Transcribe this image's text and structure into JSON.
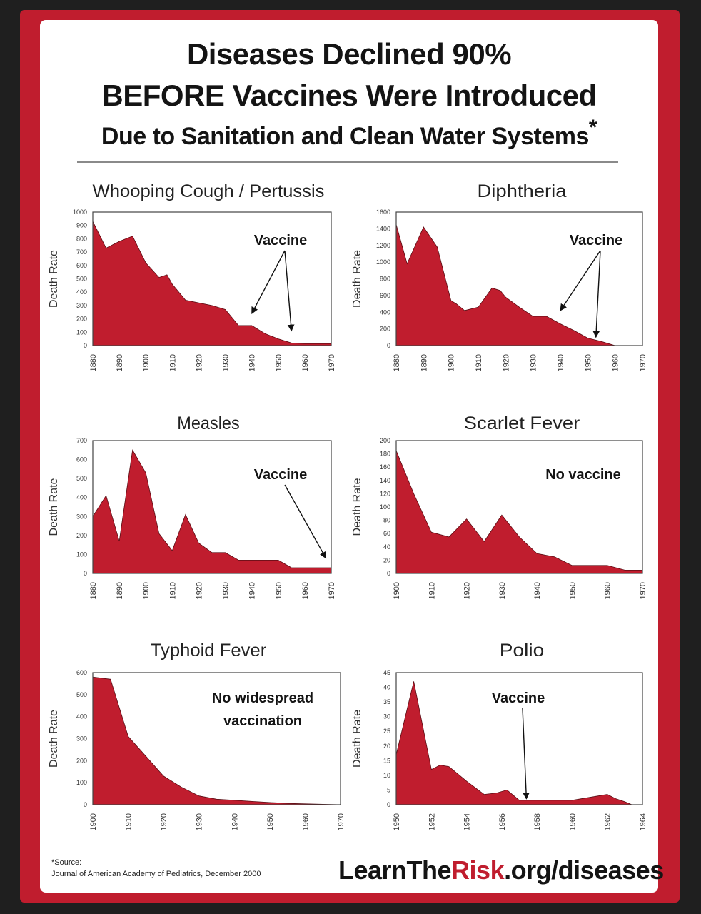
{
  "title": {
    "line1": "Diseases Declined 90%",
    "line2": "BEFORE Vaccines Were Introduced",
    "line3": "Due to Sanitation and Clean Water Systems",
    "asterisk": "*"
  },
  "source": {
    "label": "*Source:",
    "text": "Journal of American Academy of Pediatrics, December 2000"
  },
  "footer": {
    "part1": "LearnThe",
    "part2": "Risk",
    "part3": ".org/diseases"
  },
  "colors": {
    "fill": "#c01d2e",
    "frame": "#c01d2e",
    "text": "#141414"
  },
  "chart_data": [
    {
      "type": "area",
      "title": "Whooping Cough / Pertussis",
      "ylabel": "Death Rate",
      "xlim": [
        1880,
        1970
      ],
      "ylim": [
        0,
        1000
      ],
      "xticks": [
        1880,
        1890,
        1900,
        1910,
        1920,
        1930,
        1940,
        1950,
        1960,
        1970
      ],
      "yticks": [
        0,
        100,
        200,
        300,
        400,
        500,
        600,
        700,
        800,
        900,
        1000
      ],
      "x": [
        1880,
        1885,
        1890,
        1895,
        1900,
        1905,
        1908,
        1910,
        1915,
        1920,
        1925,
        1930,
        1935,
        1940,
        1945,
        1950,
        1955,
        1960,
        1965,
        1970
      ],
      "values": [
        930,
        730,
        780,
        820,
        620,
        510,
        530,
        460,
        340,
        320,
        300,
        270,
        150,
        150,
        90,
        50,
        20,
        15,
        15,
        15
      ],
      "annotation": {
        "text": "Vaccine",
        "arrows_to": [
          [
            1940,
            240
          ],
          [
            1955,
            110
          ]
        ]
      }
    },
    {
      "type": "area",
      "title": "Diphtheria",
      "ylabel": "Death Rate",
      "xlim": [
        1880,
        1970
      ],
      "ylim": [
        0,
        1600
      ],
      "xticks": [
        1880,
        1890,
        1900,
        1910,
        1920,
        1930,
        1940,
        1950,
        1960,
        1970
      ],
      "yticks": [
        0,
        200,
        400,
        600,
        800,
        1000,
        1200,
        1400,
        1600
      ],
      "x": [
        1880,
        1884,
        1890,
        1895,
        1900,
        1902,
        1905,
        1910,
        1915,
        1918,
        1920,
        1925,
        1930,
        1935,
        1940,
        1945,
        1950,
        1955,
        1960,
        1965,
        1970
      ],
      "values": [
        1450,
        980,
        1420,
        1180,
        540,
        500,
        420,
        460,
        690,
        660,
        580,
        460,
        350,
        350,
        260,
        180,
        90,
        50,
        0,
        0,
        0
      ],
      "annotation": {
        "text": "Vaccine",
        "arrows_to": [
          [
            1940,
            420
          ],
          [
            1953,
            100
          ]
        ]
      }
    },
    {
      "type": "area",
      "title": "Measles",
      "ylabel": "Death Rate",
      "xlim": [
        1880,
        1970
      ],
      "ylim": [
        0,
        700
      ],
      "xticks": [
        1880,
        1890,
        1900,
        1910,
        1920,
        1930,
        1940,
        1950,
        1960,
        1970
      ],
      "yticks": [
        0,
        100,
        200,
        300,
        400,
        500,
        600,
        700
      ],
      "x": [
        1880,
        1885,
        1890,
        1895,
        1900,
        1905,
        1910,
        1915,
        1920,
        1925,
        1930,
        1935,
        1940,
        1945,
        1950,
        1955,
        1960,
        1965,
        1970
      ],
      "values": [
        300,
        410,
        170,
        650,
        530,
        210,
        120,
        310,
        160,
        110,
        110,
        70,
        70,
        70,
        70,
        30,
        30,
        30,
        30
      ],
      "annotation": {
        "text": "Vaccine",
        "arrows_to": [
          [
            1968,
            80
          ]
        ]
      }
    },
    {
      "type": "area",
      "title": "Scarlet Fever",
      "ylabel": "Death Rate",
      "xlim": [
        1900,
        1970
      ],
      "ylim": [
        0,
        200
      ],
      "xticks": [
        1900,
        1910,
        1920,
        1930,
        1940,
        1950,
        1960,
        1970
      ],
      "yticks": [
        0,
        20,
        40,
        60,
        80,
        100,
        120,
        140,
        160,
        180,
        200
      ],
      "x": [
        1900,
        1905,
        1910,
        1915,
        1920,
        1925,
        1930,
        1935,
        1940,
        1945,
        1950,
        1955,
        1960,
        1965,
        1970
      ],
      "values": [
        185,
        120,
        62,
        55,
        82,
        48,
        88,
        55,
        30,
        25,
        12,
        12,
        12,
        5,
        5
      ],
      "annotation": {
        "text": "No vaccine",
        "arrows_to": []
      }
    },
    {
      "type": "area",
      "title": "Typhoid Fever",
      "ylabel": "Death Rate",
      "xlim": [
        1900,
        1970
      ],
      "ylim": [
        0,
        600
      ],
      "xticks": [
        1900,
        1910,
        1920,
        1930,
        1940,
        1950,
        1960,
        1970
      ],
      "yticks": [
        0,
        100,
        200,
        300,
        400,
        500,
        600
      ],
      "x": [
        1900,
        1905,
        1910,
        1915,
        1920,
        1925,
        1930,
        1935,
        1940,
        1945,
        1950,
        1955,
        1960,
        1965,
        1970
      ],
      "values": [
        580,
        570,
        310,
        220,
        130,
        80,
        40,
        25,
        20,
        15,
        10,
        6,
        4,
        2,
        0
      ],
      "annotation": {
        "text": "No widespread vaccination",
        "arrows_to": []
      }
    },
    {
      "type": "area",
      "title": "Polio",
      "ylabel": "Death Rate",
      "xlim": [
        1950,
        1964
      ],
      "ylim": [
        0,
        45
      ],
      "xticks": [
        1950,
        1952,
        1954,
        1956,
        1958,
        1960,
        1962,
        1964
      ],
      "yticks": [
        0,
        5,
        10,
        15,
        20,
        25,
        30,
        35,
        40,
        45
      ],
      "x": [
        1950,
        1951,
        1952,
        1952.5,
        1953,
        1954,
        1955,
        1955.7,
        1956.3,
        1957,
        1958,
        1959,
        1960,
        1961,
        1962,
        1962.5,
        1963,
        1963.4
      ],
      "values": [
        17,
        42,
        12,
        13.5,
        13,
        8,
        3.5,
        4,
        5,
        1.5,
        1.5,
        1.5,
        1.5,
        2.5,
        3.5,
        2,
        1,
        0
      ],
      "annotation": {
        "text": "Vaccine",
        "arrows_to": [
          [
            1957.4,
            2
          ]
        ]
      }
    }
  ]
}
